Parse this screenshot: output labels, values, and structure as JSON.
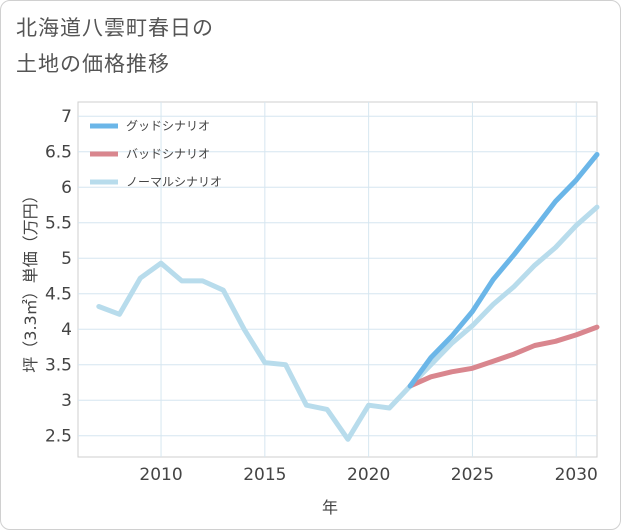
{
  "title_line1": "北海道八雲町春日の",
  "title_line2": "土地の価格推移",
  "chart_data": {
    "type": "line",
    "xlabel": "年",
    "ylabel": "坪（3.3㎡）単価（万円）",
    "xlim": [
      2006,
      2031
    ],
    "ylim": [
      2.2,
      7.2
    ],
    "x_ticks": [
      2010,
      2015,
      2020,
      2025,
      2030
    ],
    "y_ticks": [
      2.5,
      3,
      3.5,
      4,
      4.5,
      5,
      5.5,
      6,
      6.5,
      7
    ],
    "grid": true,
    "legend_position": "top-left",
    "series": [
      {
        "name": "グッドシナリオ",
        "color": "#6bb6e8",
        "x": [
          2022,
          2023,
          2024,
          2025,
          2026,
          2027,
          2028,
          2029,
          2030,
          2031
        ],
        "values": [
          3.2,
          3.6,
          3.9,
          4.25,
          4.7,
          5.05,
          5.42,
          5.8,
          6.1,
          6.46
        ]
      },
      {
        "name": "バッドシナリオ",
        "color": "#d9868e",
        "x": [
          2022,
          2023,
          2024,
          2025,
          2026,
          2027,
          2028,
          2029,
          2030,
          2031
        ],
        "values": [
          3.2,
          3.33,
          3.4,
          3.45,
          3.55,
          3.65,
          3.77,
          3.83,
          3.92,
          4.03
        ]
      },
      {
        "name": "ノーマルシナリオ",
        "color": "#b8dcec",
        "x": [
          2007,
          2008,
          2009,
          2010,
          2011,
          2012,
          2013,
          2014,
          2015,
          2016,
          2017,
          2018,
          2019,
          2020,
          2021,
          2022,
          2023,
          2024,
          2025,
          2026,
          2027,
          2028,
          2029,
          2030,
          2031
        ],
        "values": [
          4.32,
          4.21,
          4.72,
          4.93,
          4.68,
          4.68,
          4.55,
          4.0,
          3.53,
          3.5,
          2.93,
          2.87,
          2.45,
          2.93,
          2.89,
          3.2,
          3.5,
          3.8,
          4.05,
          4.35,
          4.6,
          4.9,
          5.15,
          5.46,
          5.72
        ]
      }
    ]
  }
}
